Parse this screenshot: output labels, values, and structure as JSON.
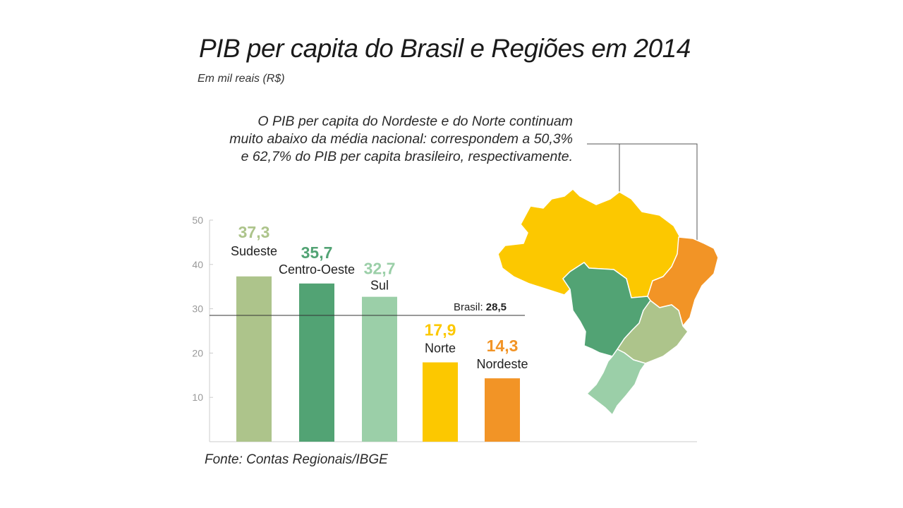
{
  "header": {
    "title": "PIB per capita do Brasil e Regiões em 2014",
    "subtitle": "Em mil reais (R$)"
  },
  "note": {
    "lines": [
      "O PIB per capita do Nordeste e do Norte continuam",
      "muito abaixo da média nacional: correspondem a 50,3%",
      "e 62,7% do PIB per capita brasileiro, respectivamente."
    ]
  },
  "footer": {
    "source": "Fonte: Contas Regionais/IBGE"
  },
  "chart_data": {
    "type": "bar",
    "categories": [
      "Sudeste",
      "Centro-Oeste",
      "Sul",
      "Norte",
      "Nordeste"
    ],
    "values": [
      37.3,
      35.7,
      32.7,
      17.9,
      14.3
    ],
    "value_labels": [
      "37,3",
      "35,7",
      "32,7",
      "17,9",
      "14,3"
    ],
    "colors": [
      "#adc48b",
      "#52a374",
      "#9bcfa8",
      "#fcc800",
      "#f29426"
    ],
    "ylim": [
      0,
      50
    ],
    "yticks": [
      10,
      20,
      30,
      40,
      50
    ],
    "reference_line": {
      "label": "Brasil: ",
      "value": 28.5,
      "value_label": "28,5"
    },
    "grid": false,
    "legend": "none"
  },
  "map": {
    "regions": [
      {
        "name": "Norte",
        "color": "#fcc800"
      },
      {
        "name": "Nordeste",
        "color": "#f29426"
      },
      {
        "name": "Centro-Oeste",
        "color": "#52a374"
      },
      {
        "name": "Sudeste",
        "color": "#adc48b"
      },
      {
        "name": "Sul",
        "color": "#9bcfa8"
      }
    ]
  }
}
